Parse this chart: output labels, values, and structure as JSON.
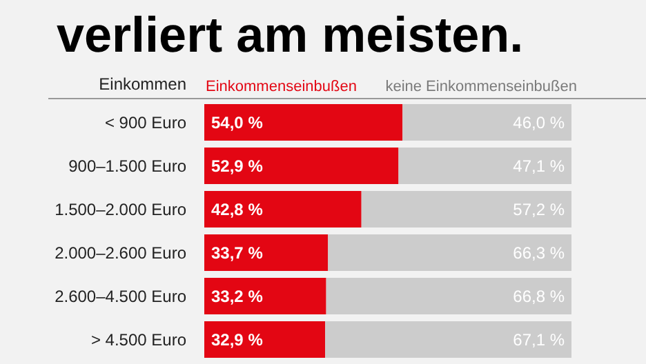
{
  "chart_data": {
    "type": "bar",
    "orientation": "horizontal",
    "stacked": true,
    "title": "verliert am meisten.",
    "ylabel": "Einkommen",
    "categories": [
      "< 900 Euro",
      "900–1.500 Euro",
      "1.500–2.000 Euro",
      "2.000–2.600 Euro",
      "2.600–4.500 Euro",
      "> 4.500 Euro"
    ],
    "series": [
      {
        "name": "Einkommenseinbußen",
        "color": "#e30613",
        "values": [
          54.0,
          52.9,
          42.8,
          33.7,
          33.2,
          32.9
        ],
        "value_labels": [
          "54,0 %",
          "52,9 %",
          "42,8 %",
          "33,7 %",
          "33,2 %",
          "32,9 %"
        ]
      },
      {
        "name": "keine Einkommenseinbußen",
        "color": "#cccccc",
        "values": [
          46.0,
          47.1,
          57.2,
          66.3,
          66.8,
          67.1
        ],
        "value_labels": [
          "46,0 %",
          "47,1 %",
          "57,2 %",
          "66,3 %",
          "66,8 %",
          "67,1 %"
        ]
      }
    ],
    "xlim": [
      0,
      100
    ],
    "tick_labels": "y",
    "legend": "top"
  }
}
